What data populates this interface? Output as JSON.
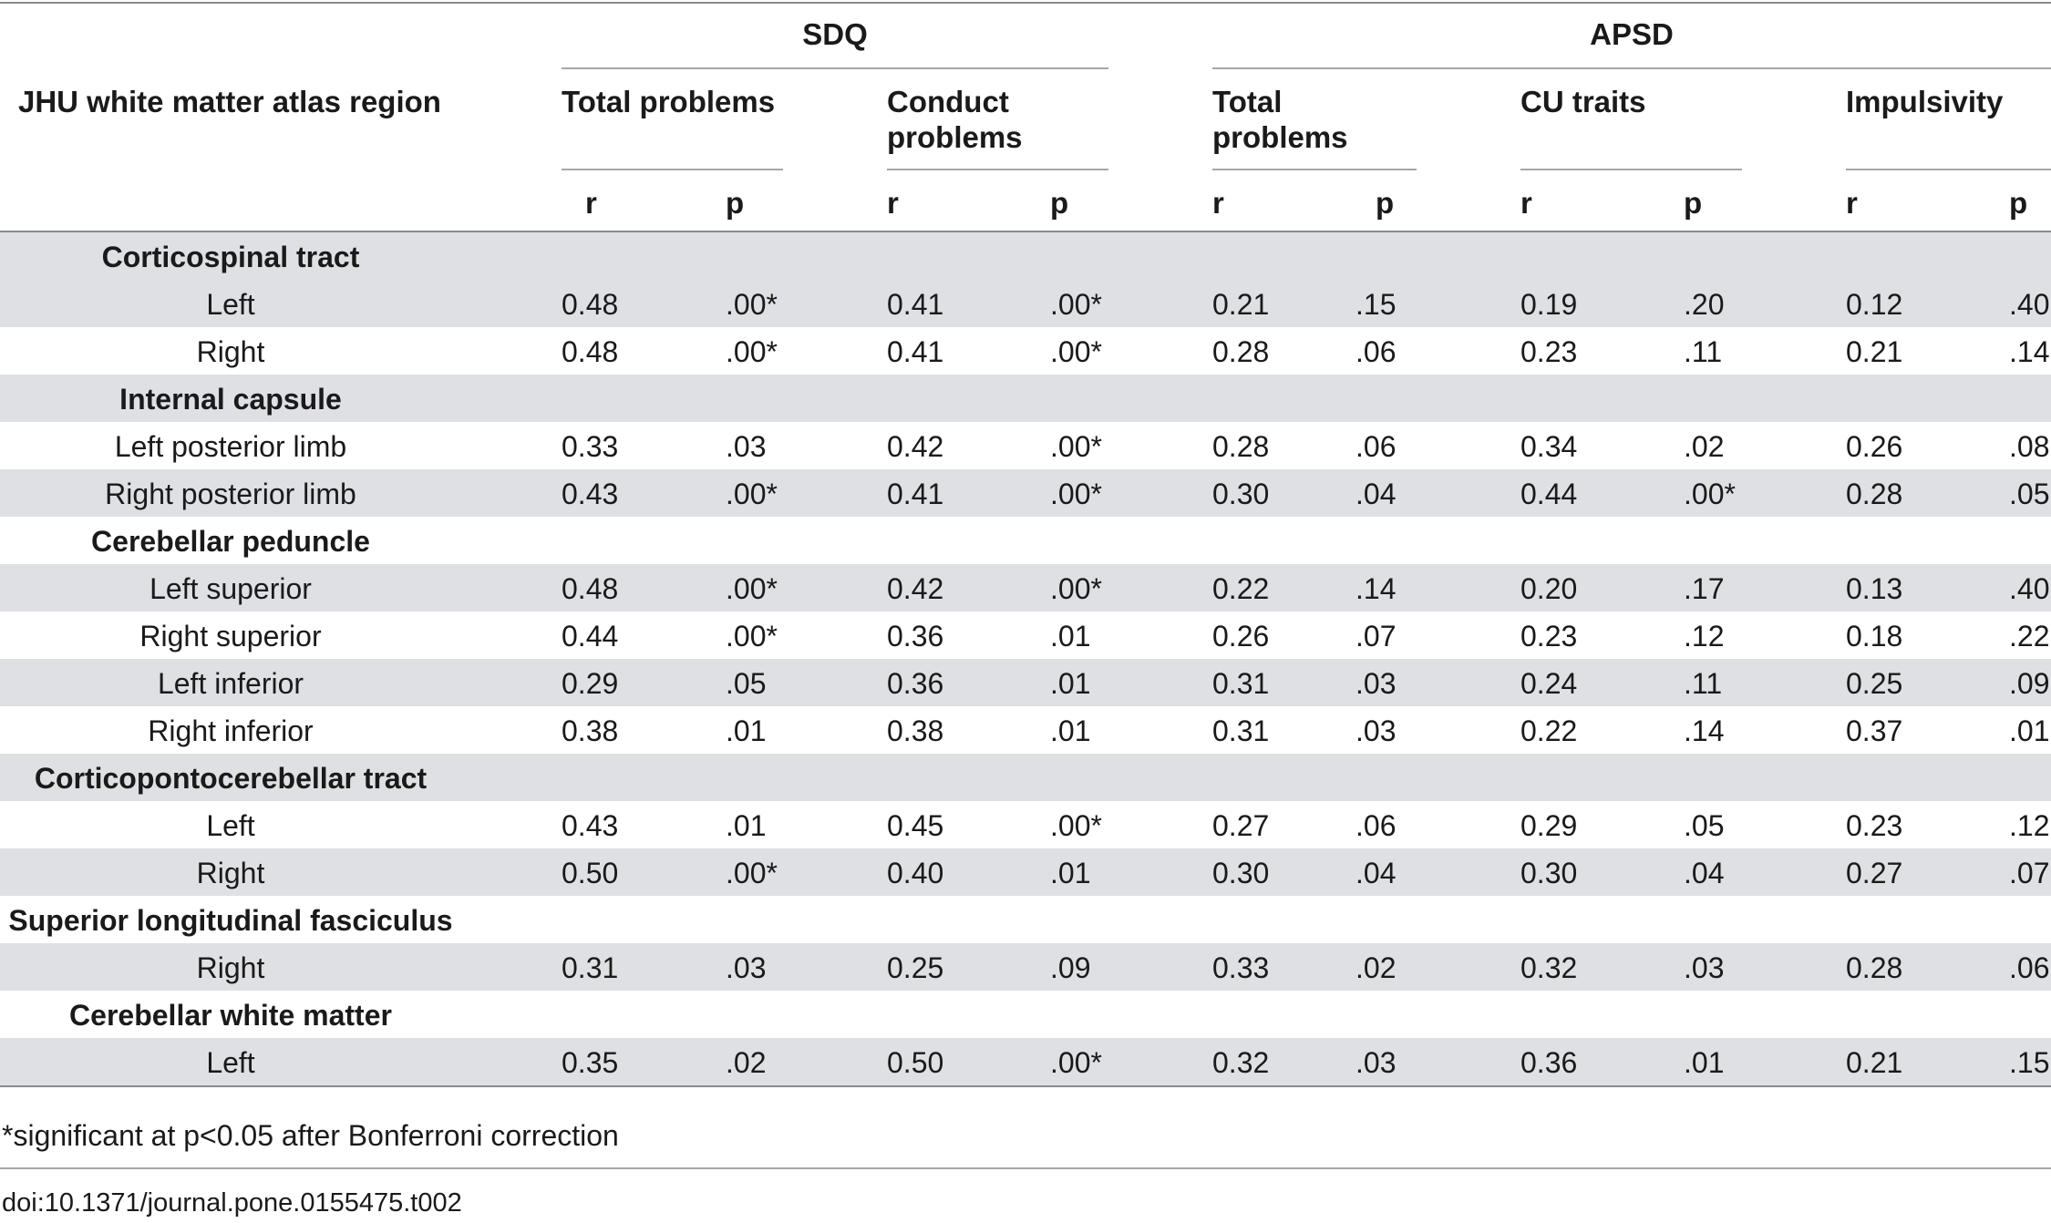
{
  "header": {
    "region_label": "JHU white matter atlas region",
    "sdq_label": "SDQ",
    "apsd_label": "APSD",
    "sdq_total": "Total problems",
    "sdq_conduct": "Conduct problems",
    "apsd_total": "Total problems",
    "apsd_cu": "CU traits",
    "apsd_impulsivity": "Impulsivity",
    "r_label": "r",
    "p_label": "p"
  },
  "rows": [
    {
      "type": "group",
      "label": "Corticospinal tract"
    },
    {
      "type": "data",
      "label": "Left",
      "values": [
        "0.48",
        ".00*",
        "0.41",
        ".00*",
        "0.21",
        ".15",
        "0.19",
        ".20",
        "0.12",
        ".40"
      ]
    },
    {
      "type": "data",
      "label": "Right",
      "values": [
        "0.48",
        ".00*",
        "0.41",
        ".00*",
        "0.28",
        ".06",
        "0.23",
        ".11",
        "0.21",
        ".14"
      ]
    },
    {
      "type": "group",
      "label": "Internal capsule"
    },
    {
      "type": "data",
      "label": "Left posterior limb",
      "values": [
        "0.33",
        ".03",
        "0.42",
        ".00*",
        "0.28",
        ".06",
        "0.34",
        ".02",
        "0.26",
        ".08"
      ]
    },
    {
      "type": "data",
      "label": "Right posterior limb",
      "values": [
        "0.43",
        ".00*",
        "0.41",
        ".00*",
        "0.30",
        ".04",
        "0.44",
        ".00*",
        "0.28",
        ".05"
      ]
    },
    {
      "type": "group",
      "label": "Cerebellar peduncle"
    },
    {
      "type": "data",
      "label": "Left superior",
      "values": [
        "0.48",
        ".00*",
        "0.42",
        ".00*",
        "0.22",
        ".14",
        "0.20",
        ".17",
        "0.13",
        ".40"
      ]
    },
    {
      "type": "data",
      "label": "Right superior",
      "values": [
        "0.44",
        ".00*",
        "0.36",
        ".01",
        "0.26",
        ".07",
        "0.23",
        ".12",
        "0.18",
        ".22"
      ]
    },
    {
      "type": "data",
      "label": "Left inferior",
      "values": [
        "0.29",
        ".05",
        "0.36",
        ".01",
        "0.31",
        ".03",
        "0.24",
        ".11",
        "0.25",
        ".09"
      ]
    },
    {
      "type": "data",
      "label": "Right inferior",
      "values": [
        "0.38",
        ".01",
        "0.38",
        ".01",
        "0.31",
        ".03",
        "0.22",
        ".14",
        "0.37",
        ".01"
      ]
    },
    {
      "type": "group",
      "label": "Corticopontocerebellar tract"
    },
    {
      "type": "data",
      "label": "Left",
      "values": [
        "0.43",
        ".01",
        "0.45",
        ".00*",
        "0.27",
        ".06",
        "0.29",
        ".05",
        "0.23",
        ".12"
      ]
    },
    {
      "type": "data",
      "label": "Right",
      "values": [
        "0.50",
        ".00*",
        "0.40",
        ".01",
        "0.30",
        ".04",
        "0.30",
        ".04",
        "0.27",
        ".07"
      ]
    },
    {
      "type": "group",
      "label": "Superior longitudinal fasciculus"
    },
    {
      "type": "data",
      "label": "Right",
      "values": [
        "0.31",
        ".03",
        "0.25",
        ".09",
        "0.33",
        ".02",
        "0.32",
        ".03",
        "0.28",
        ".06"
      ]
    },
    {
      "type": "group",
      "label": "Cerebellar white matter"
    },
    {
      "type": "data",
      "label": "Left",
      "values": [
        "0.35",
        ".02",
        "0.50",
        ".00*",
        "0.32",
        ".03",
        "0.36",
        ".01",
        "0.21",
        ".15"
      ]
    }
  ],
  "footnote": "*significant at p<0.05 after Bonferroni correction",
  "doi": "doi:10.1371/journal.pone.0155475.t002"
}
